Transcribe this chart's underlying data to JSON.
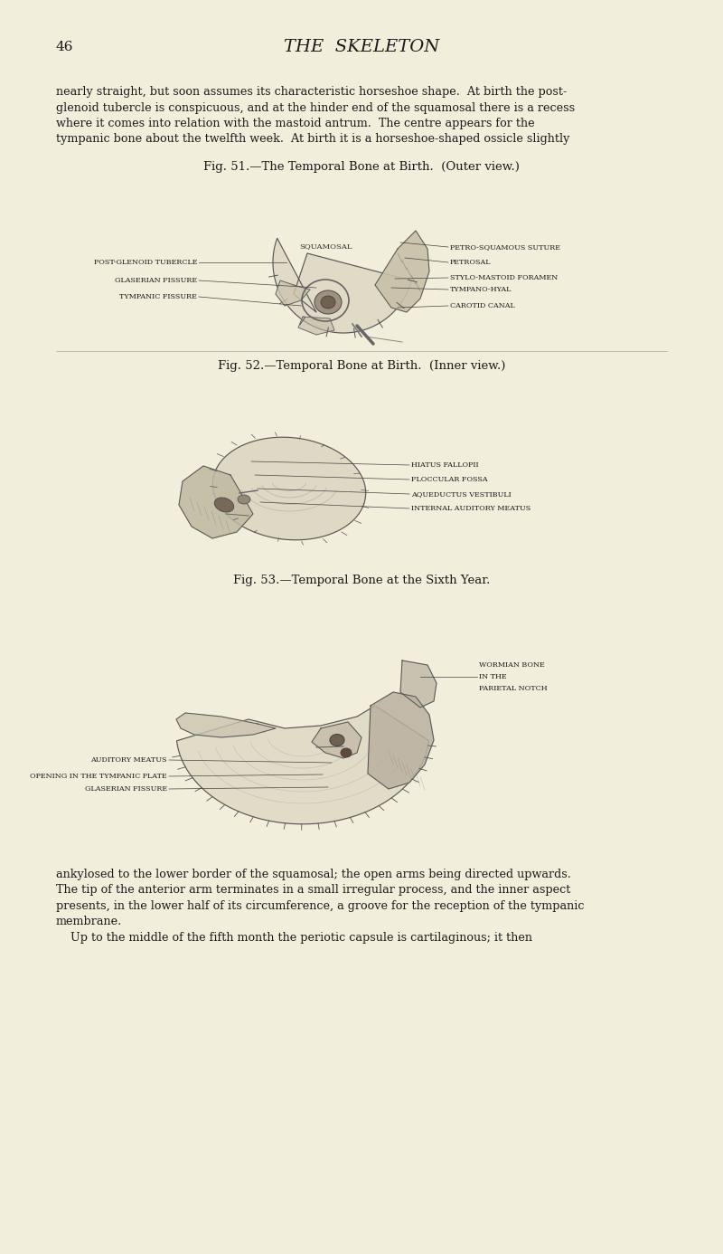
{
  "bg_color": "#f2eedc",
  "page_number": "46",
  "page_header": "THE  SKELETON",
  "body_text_top_lines": [
    "nearly straight, but soon assumes its characteristic horseshoe shape.  At birth the post-",
    "glenoid tubercle is conspicuous, and at the hinder end of the squamosal there is a recess",
    "where it comes into relation with the mastoid antrum.  The centre appears for the",
    "tympanic bone about the twelfth week.  At birth it is a horseshoe-shaped ossicle slightly"
  ],
  "fig51_caption": "Fig. 51.—The Temporal Bone at Birth.  (Outer view.)",
  "fig52_caption": "Fig. 52.—Temporal Bone at Birth.  (Inner view.)",
  "fig53_caption": "Fig. 53.—Temporal Bone at the Sixth Year.",
  "fig51_left_labels": [
    "POST-GLENOID TUBERCLE",
    "GLASERIAN FISSURE",
    "TYMPANIC FISSURE"
  ],
  "fig51_right_labels": [
    "PETRO-SQUAMOUS SUTURE",
    "PETROSAL",
    "STYLO-MASTOID FORAMEN",
    "TYMPANO-HYAL",
    "CAROTID CANAL"
  ],
  "fig51_top_label": "SQUAMOSAL",
  "fig52_right_labels": [
    "HIATUS FALLOPII",
    "FLOCCULAR FOSSA",
    "AQUEDUCTUS VESTIBULI",
    "INTERNAL AUDITORY MEATUS"
  ],
  "fig53_right_labels": [
    "WORMIAN BONE",
    "IN THE",
    "PARIETAL NOTCH"
  ],
  "fig53_left_labels": [
    "AUDITORY MEATUS",
    "OPENING IN THE TYMPANIC PLATE",
    "GLASERIAN FISSURE"
  ],
  "body_text_bottom_lines": [
    "ankylosed to the lower border of the squamosal; the open arms being directed upwards.",
    "The tip of the anterior arm terminates in a small irregular process, and the inner aspect",
    "presents, in the lower half of its circumference, a groove for the reception of the tympanic",
    "membrane.",
    "    Up to the middle of the fifth month the periotic capsule is cartilaginous; it then"
  ],
  "text_color": "#1a1a1a",
  "label_fontsize": 5.8,
  "body_fontsize": 9.2,
  "caption_fontsize": 9.5,
  "header_fontsize": 14,
  "pagenum_fontsize": 11,
  "line_color": "#444444",
  "bone_fill_light": "#d8d2bc",
  "bone_fill_mid": "#c4bda8",
  "bone_fill_dark": "#a89e8c",
  "bone_edge": "#555555"
}
